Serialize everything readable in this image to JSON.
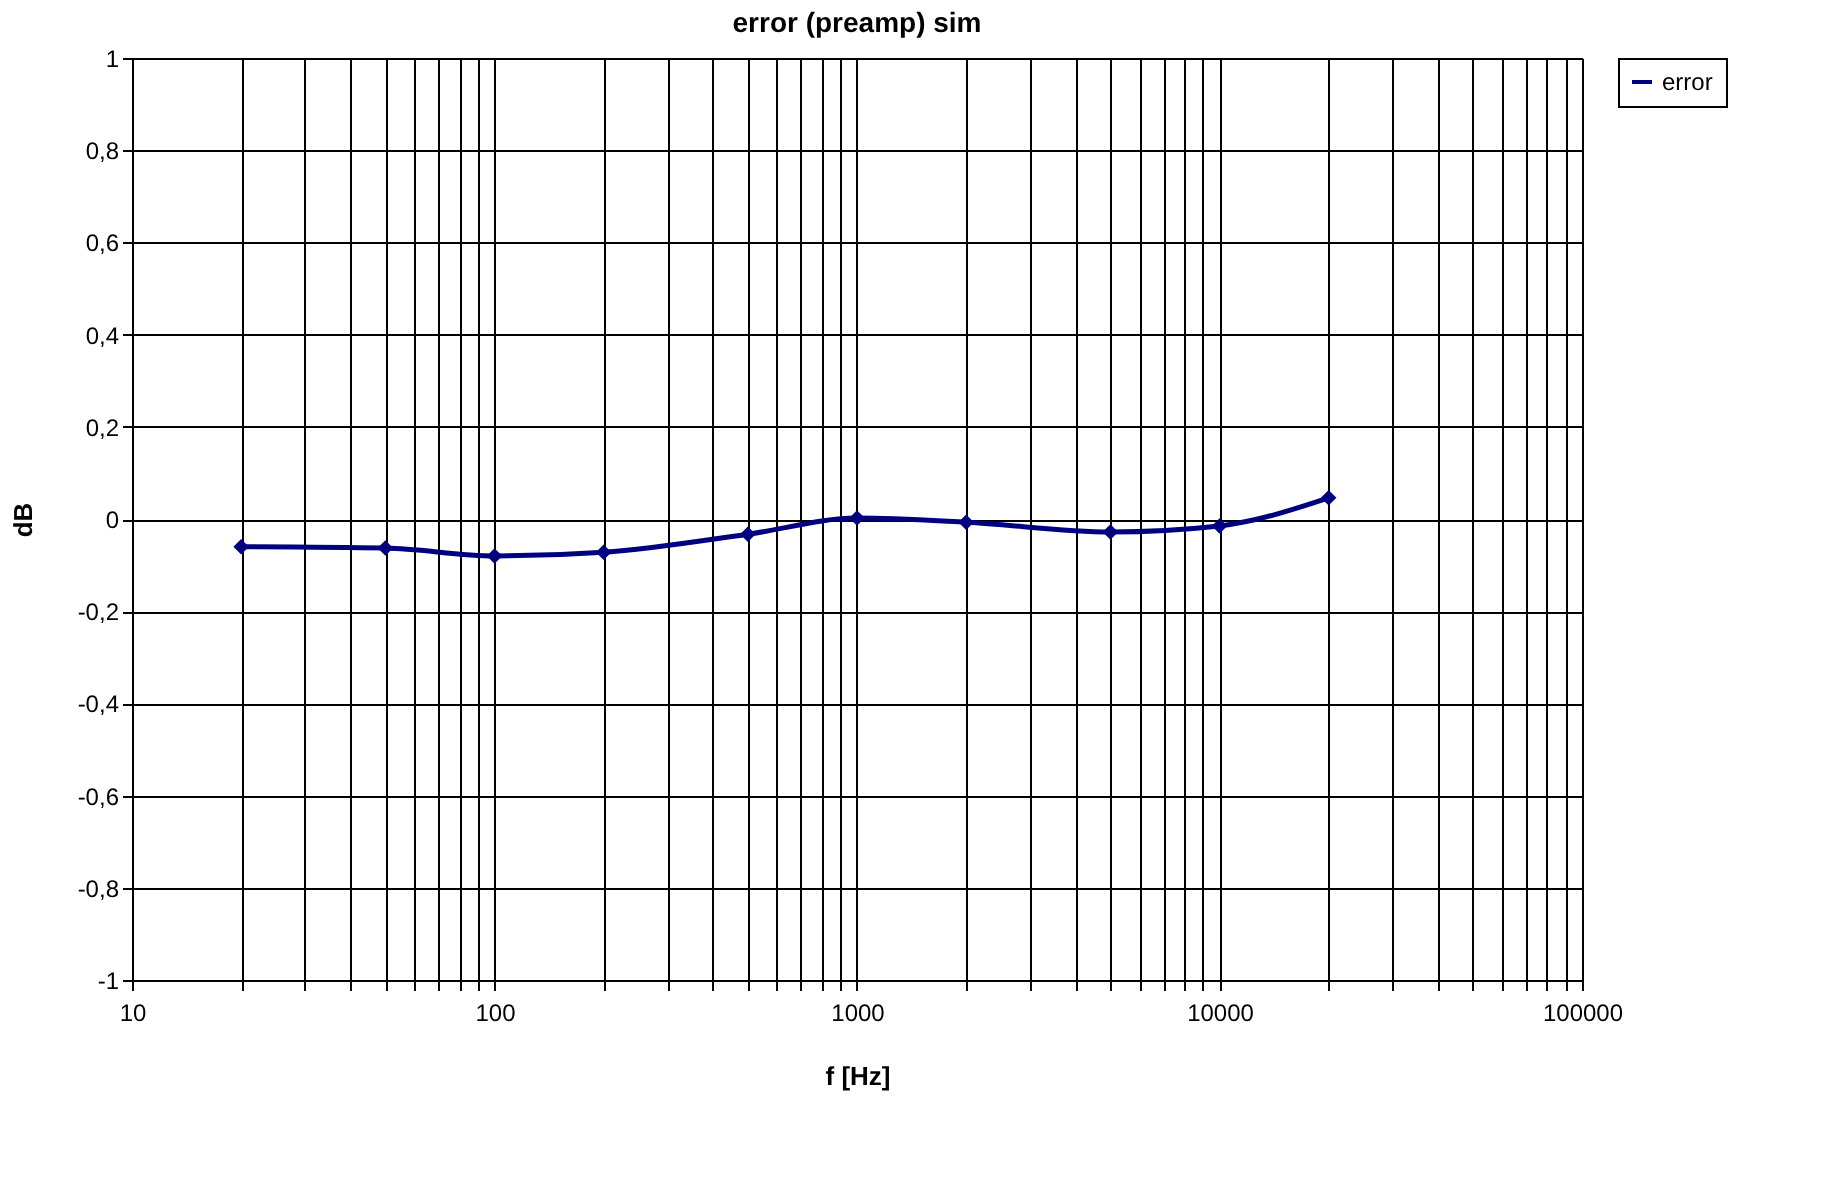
{
  "chart_data": {
    "type": "line",
    "title": "error (preamp) sim",
    "xlabel": "f [Hz]",
    "ylabel": "dB",
    "x": [
      20,
      50,
      100,
      200,
      500,
      1000,
      2000,
      5000,
      10000,
      20000
    ],
    "series": [
      {
        "name": "error",
        "color": "#000080",
        "values": [
          -0.06,
          -0.063,
          -0.08,
          -0.072,
          -0.033,
          0.002,
          -0.007,
          -0.028,
          -0.015,
          0.046
        ]
      }
    ],
    "log": "x",
    "xlim": [
      10,
      100000
    ],
    "xticks": [
      10,
      {
        "value": 20,
        "label": null
      },
      {
        "value": 30,
        "label": null
      },
      {
        "value": 40,
        "label": null
      },
      {
        "value": 50,
        "label": null
      },
      {
        "value": 60,
        "label": null
      },
      {
        "value": 70,
        "label": null
      },
      {
        "value": 80,
        "label": null
      },
      {
        "value": 90,
        "label": null
      },
      100,
      {
        "value": 200,
        "label": null
      },
      {
        "value": 300,
        "label": null
      },
      {
        "value": 400,
        "label": null
      },
      {
        "value": 500,
        "label": null
      },
      {
        "value": 600,
        "label": null
      },
      {
        "value": 700,
        "label": null
      },
      {
        "value": 800,
        "label": null
      },
      {
        "value": 900,
        "label": null
      },
      1000,
      {
        "value": 2000,
        "label": null
      },
      {
        "value": 3000,
        "label": null
      },
      {
        "value": 4000,
        "label": null
      },
      {
        "value": 5000,
        "label": null
      },
      {
        "value": 6000,
        "label": null
      },
      {
        "value": 7000,
        "label": null
      },
      {
        "value": 8000,
        "label": null
      },
      {
        "value": 9000,
        "label": null
      },
      10000,
      {
        "value": 20000,
        "label": null
      },
      {
        "value": 30000,
        "label": null
      },
      {
        "value": 40000,
        "label": null
      },
      {
        "value": 50000,
        "label": null
      },
      {
        "value": 60000,
        "label": null
      },
      {
        "value": 70000,
        "label": null
      },
      {
        "value": 80000,
        "label": null
      },
      {
        "value": 90000,
        "label": null
      },
      100000
    ],
    "ylim": [
      -1,
      1
    ],
    "yticks": [
      -1,
      {
        "value": -0.8,
        "label": "-0,8"
      },
      {
        "value": -0.6,
        "label": "-0,6"
      },
      {
        "value": -0.4,
        "label": "-0,4"
      },
      {
        "value": -0.2,
        "label": "-0,2"
      },
      0,
      {
        "value": 0.2,
        "label": "0,2"
      },
      {
        "value": 0.4,
        "label": "0,4"
      },
      {
        "value": 0.6,
        "label": "0,6"
      },
      {
        "value": 0.8,
        "label": "0,8"
      },
      1
    ],
    "grid": true,
    "legend": "right",
    "marker": "diamond",
    "line_style": "solid"
  }
}
